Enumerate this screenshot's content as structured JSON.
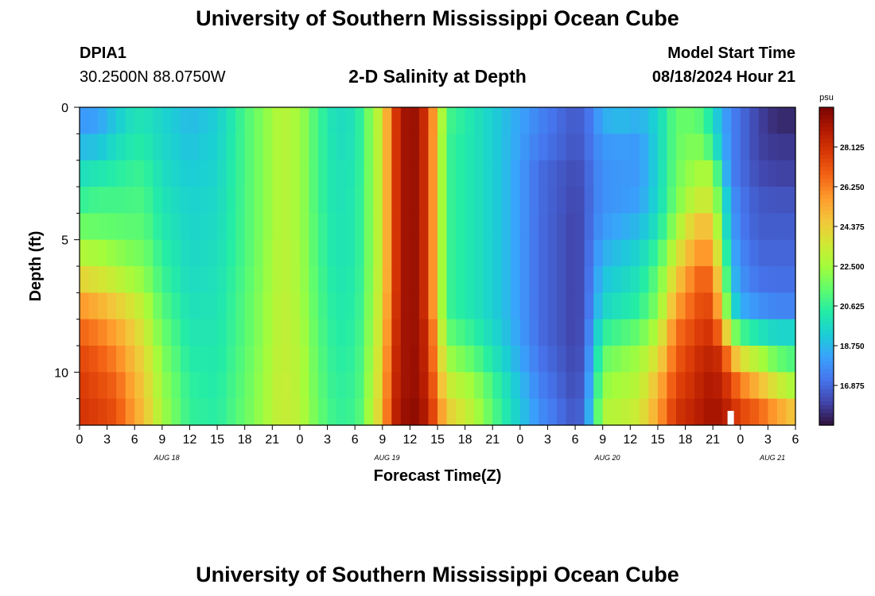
{
  "header": {
    "title": "University of Southern Mississippi Ocean Cube",
    "station_id": "DPIA1",
    "station_coords": "30.2500N  88.0750W",
    "plot_title": "2-D Salinity at Depth",
    "model_start_label": "Model Start Time",
    "model_start_time": "08/18/2024 Hour 21"
  },
  "footer": {
    "title": "University of Southern Mississippi Ocean Cube"
  },
  "chart_data": {
    "type": "heatmap",
    "title": "2-D Salinity at Depth",
    "xlabel": "Forecast Time(Z)",
    "ylabel": "Depth (ft)",
    "ylim": [
      0,
      12
    ],
    "y_ticks": [
      0,
      5,
      10
    ],
    "x_hours_range": [
      0,
      78
    ],
    "x_tick_step_hours": 3,
    "x_tick_labels": [
      "0",
      "3",
      "6",
      "9",
      "12",
      "15",
      "18",
      "21",
      "0",
      "3",
      "6",
      "9",
      "12",
      "15",
      "18",
      "21",
      "0",
      "3",
      "6",
      "9",
      "12",
      "15",
      "18",
      "21",
      "0",
      "3",
      "6"
    ],
    "date_labels": [
      {
        "label": "AUG 18",
        "hour": 9.5
      },
      {
        "label": "AUG 19",
        "hour": 33.5
      },
      {
        "label": "AUG 20",
        "hour": 57.5
      },
      {
        "label": "AUG 21",
        "hour": 75.5
      }
    ],
    "colorbar": {
      "unit": "psu",
      "min": 15.0,
      "max": 30.0,
      "ticks": [
        "28.125",
        "26.250",
        "24.375",
        "22.500",
        "20.625",
        "18.750",
        "16.875"
      ],
      "colors": [
        "#30123b",
        "#4145ab",
        "#4675ed",
        "#39a2fc",
        "#1bcfd4",
        "#24eca6",
        "#61fc6c",
        "#a4fc3b",
        "#d1e834",
        "#f3c63a",
        "#fe9b2d",
        "#f36315",
        "#d93806",
        "#b11901",
        "#7a0403"
      ]
    },
    "marker_hour": 70.6,
    "depth_bins_ft": [
      "0-1",
      "1-2",
      "2-3",
      "3-4",
      "4-5",
      "5-6",
      "6-7",
      "7-8",
      "8-9",
      "9-10",
      "10-11",
      "11-12"
    ],
    "time_keyframes_hours": [
      0,
      2,
      4,
      6,
      7,
      9,
      12,
      15,
      18,
      21,
      22,
      24,
      26,
      28,
      30,
      31,
      32,
      33,
      34,
      35,
      36,
      37,
      38,
      40,
      43,
      46,
      50,
      54,
      55,
      56,
      57,
      59,
      61,
      63,
      65,
      67,
      68,
      69,
      70,
      71,
      72,
      74,
      76,
      78
    ],
    "salinity_psu": [
      [
        18.0,
        18.2,
        19.2,
        20.0,
        20.0,
        19.5,
        18.8,
        19.3,
        21.0,
        22.5,
        23.0,
        22.5,
        20.8,
        19.7,
        20.0,
        21.0,
        22.5,
        23.5,
        27.0,
        29.0,
        29.5,
        29.2,
        27.5,
        21.0,
        20.0,
        19.0,
        17.5,
        16.5,
        16.8,
        17.5,
        18.5,
        18.8,
        18.5,
        19.5,
        21.5,
        21.5,
        21.0,
        19.8,
        18.5,
        17.5,
        17.0,
        16.0,
        15.5,
        15.5
      ],
      [
        18.8,
        19.0,
        19.8,
        20.3,
        20.3,
        19.6,
        19.0,
        19.4,
        21.0,
        22.5,
        23.0,
        22.5,
        20.8,
        19.8,
        20.0,
        21.0,
        22.5,
        23.5,
        27.0,
        29.0,
        29.5,
        29.2,
        27.5,
        20.8,
        20.0,
        19.0,
        17.3,
        16.4,
        16.7,
        17.4,
        18.0,
        18.1,
        18.0,
        19.5,
        21.5,
        22.0,
        21.8,
        20.5,
        18.8,
        17.5,
        17.0,
        16.0,
        15.8,
        15.8
      ],
      [
        19.8,
        20.1,
        20.4,
        20.7,
        20.7,
        19.8,
        19.2,
        19.5,
        21.0,
        22.5,
        23.0,
        22.5,
        20.8,
        19.9,
        20.1,
        21.0,
        22.5,
        23.5,
        27.0,
        29.0,
        29.5,
        29.2,
        27.5,
        20.8,
        20.0,
        19.0,
        17.0,
        16.2,
        16.5,
        17.3,
        17.8,
        18.0,
        18.0,
        19.5,
        21.6,
        22.5,
        22.7,
        22.5,
        19.5,
        17.5,
        17.0,
        16.2,
        16.0,
        16.0
      ],
      [
        20.6,
        20.9,
        20.9,
        21.0,
        21.0,
        20.0,
        19.4,
        19.6,
        21.0,
        22.5,
        23.0,
        22.5,
        20.8,
        19.9,
        20.2,
        21.0,
        22.5,
        23.5,
        27.0,
        29.0,
        29.5,
        29.2,
        27.5,
        20.8,
        20.0,
        19.0,
        17.0,
        16.1,
        16.4,
        17.3,
        17.8,
        18.0,
        18.2,
        19.6,
        21.8,
        23.2,
        23.5,
        23.3,
        20.5,
        18.0,
        17.2,
        16.5,
        16.4,
        16.4
      ],
      [
        21.6,
        21.5,
        21.4,
        21.3,
        21.3,
        20.2,
        19.5,
        19.7,
        21.0,
        22.5,
        23.0,
        22.5,
        20.9,
        20.0,
        20.2,
        21.0,
        22.5,
        23.5,
        27.0,
        29.0,
        29.5,
        29.2,
        27.5,
        20.8,
        20.0,
        19.0,
        17.0,
        16.0,
        16.4,
        17.4,
        18.0,
        18.4,
        18.8,
        20.0,
        22.5,
        24.5,
        25.0,
        24.5,
        21.0,
        18.3,
        17.3,
        16.6,
        16.6,
        16.6
      ],
      [
        22.8,
        22.6,
        22.2,
        21.8,
        21.7,
        20.5,
        19.6,
        19.8,
        21.0,
        22.6,
        23.1,
        22.6,
        20.9,
        20.0,
        20.2,
        21.0,
        22.5,
        23.5,
        27.0,
        29.0,
        29.5,
        29.2,
        27.5,
        20.8,
        20.0,
        19.0,
        17.0,
        16.0,
        16.4,
        17.6,
        18.5,
        19.0,
        19.5,
        20.8,
        23.5,
        25.5,
        26.0,
        25.5,
        22.0,
        18.8,
        17.6,
        16.8,
        16.8,
        16.8
      ],
      [
        24.2,
        23.8,
        23.2,
        22.5,
        22.2,
        20.8,
        19.7,
        19.9,
        21.1,
        22.6,
        23.1,
        22.6,
        21.0,
        20.1,
        20.3,
        21.0,
        22.6,
        23.6,
        27.0,
        29.0,
        29.5,
        29.2,
        27.5,
        20.8,
        20.0,
        19.0,
        17.0,
        16.0,
        16.4,
        17.8,
        19.0,
        19.5,
        20.0,
        21.5,
        24.5,
        26.5,
        27.0,
        26.5,
        23.0,
        19.2,
        17.9,
        17.1,
        17.0,
        17.0
      ],
      [
        25.8,
        25.2,
        24.5,
        23.5,
        23.0,
        21.2,
        19.9,
        20.0,
        21.2,
        22.7,
        23.2,
        22.7,
        21.1,
        20.2,
        20.4,
        21.1,
        22.7,
        23.8,
        27.2,
        29.0,
        29.5,
        29.2,
        27.5,
        20.8,
        20.0,
        19.0,
        17.0,
        16.0,
        16.4,
        18.0,
        19.5,
        20.0,
        20.5,
        22.0,
        25.5,
        27.0,
        27.5,
        27.3,
        24.0,
        20.0,
        18.5,
        17.8,
        17.5,
        17.5
      ],
      [
        26.8,
        26.3,
        25.5,
        24.3,
        23.6,
        21.6,
        20.1,
        20.1,
        21.2,
        22.7,
        23.3,
        22.8,
        21.2,
        20.3,
        20.5,
        21.2,
        22.8,
        24.0,
        27.5,
        29.0,
        29.5,
        29.2,
        28.0,
        21.5,
        20.5,
        19.2,
        17.0,
        16.0,
        16.5,
        18.5,
        20.5,
        21.0,
        21.5,
        23.0,
        26.5,
        27.5,
        28.0,
        28.0,
        26.0,
        22.5,
        21.0,
        20.0,
        19.5,
        19.5
      ],
      [
        27.5,
        27.0,
        26.2,
        24.8,
        24.2,
        22.0,
        20.3,
        20.2,
        21.3,
        22.8,
        23.3,
        22.9,
        21.3,
        20.4,
        20.6,
        21.3,
        23.0,
        24.2,
        27.8,
        29.0,
        29.5,
        29.3,
        28.0,
        22.5,
        21.3,
        19.6,
        17.2,
        16.1,
        16.6,
        19.0,
        21.5,
        22.0,
        22.5,
        24.0,
        27.0,
        28.0,
        28.5,
        28.6,
        28.0,
        25.5,
        24.0,
        22.8,
        21.5,
        21.0
      ],
      [
        27.8,
        27.4,
        26.8,
        25.2,
        24.5,
        22.3,
        20.5,
        20.3,
        21.4,
        22.9,
        23.4,
        22.9,
        21.4,
        20.5,
        20.7,
        21.4,
        23.2,
        24.4,
        28.0,
        29.0,
        29.5,
        29.3,
        28.3,
        23.5,
        22.3,
        20.2,
        17.5,
        16.2,
        16.8,
        19.5,
        22.2,
        22.6,
        23.0,
        25.0,
        27.5,
        28.3,
        28.8,
        29.0,
        28.6,
        27.5,
        26.3,
        25.0,
        23.5,
        22.5
      ],
      [
        28.0,
        27.7,
        27.2,
        25.5,
        24.8,
        22.5,
        20.6,
        20.4,
        21.5,
        22.9,
        23.4,
        23.0,
        21.5,
        20.6,
        20.8,
        21.5,
        23.4,
        24.6,
        28.2,
        29.2,
        29.6,
        29.5,
        28.5,
        24.5,
        22.8,
        20.5,
        17.8,
        16.4,
        17.0,
        20.0,
        22.8,
        23.0,
        23.5,
        25.5,
        28.0,
        28.6,
        29.0,
        29.2,
        29.0,
        28.3,
        27.5,
        26.8,
        25.5,
        24.5
      ]
    ]
  }
}
